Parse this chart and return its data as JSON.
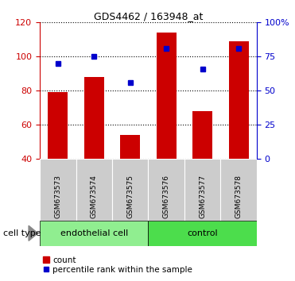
{
  "title": "GDS4462 / 163948_at",
  "categories": [
    "GSM673573",
    "GSM673574",
    "GSM673575",
    "GSM673576",
    "GSM673577",
    "GSM673578"
  ],
  "bar_values": [
    79,
    88,
    54,
    114,
    68,
    109
  ],
  "percentile_values": [
    70,
    75,
    56,
    81,
    66,
    81
  ],
  "bar_color": "#cc0000",
  "dot_color": "#0000cc",
  "ylim_left": [
    40,
    120
  ],
  "ylim_right": [
    0,
    100
  ],
  "yticks_left": [
    40,
    60,
    80,
    100,
    120
  ],
  "yticks_right": [
    0,
    25,
    50,
    75,
    100
  ],
  "ytick_labels_right": [
    "0",
    "25",
    "50",
    "75",
    "100%"
  ],
  "groups": [
    {
      "label": "endothelial cell",
      "indices": [
        0,
        1,
        2
      ],
      "color": "#90ee90"
    },
    {
      "label": "control",
      "indices": [
        3,
        4,
        5
      ],
      "color": "#4cdd4c"
    }
  ],
  "cell_type_label": "cell type",
  "legend_bar_label": "count",
  "legend_dot_label": "percentile rank within the sample",
  "bar_width": 0.55,
  "tick_area_color": "#cccccc",
  "group_box_color_light": "#90ee90",
  "group_box_color_dark": "#4cdd4c"
}
